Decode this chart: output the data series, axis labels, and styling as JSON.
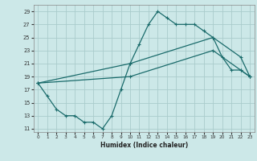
{
  "xlabel": "Humidex (Indice chaleur)",
  "bg_color": "#cce8e8",
  "grid_color": "#aacccc",
  "line_color": "#1a6b6b",
  "xlim": [
    -0.5,
    23.5
  ],
  "ylim": [
    10.5,
    30
  ],
  "xticks": [
    0,
    1,
    2,
    3,
    4,
    5,
    6,
    7,
    8,
    9,
    10,
    11,
    12,
    13,
    14,
    15,
    16,
    17,
    18,
    19,
    20,
    21,
    22,
    23
  ],
  "yticks": [
    11,
    13,
    15,
    17,
    19,
    21,
    23,
    25,
    27,
    29
  ],
  "line1_x": [
    0,
    1,
    2,
    3,
    4,
    5,
    6,
    7,
    8,
    9,
    10,
    11,
    12,
    13,
    14,
    15,
    16,
    17,
    18,
    19,
    20,
    21,
    22,
    23
  ],
  "line1_y": [
    18,
    16,
    14,
    13,
    13,
    12,
    12,
    11,
    13,
    17,
    21,
    24,
    27,
    29,
    28,
    27,
    27,
    27,
    26,
    25,
    22,
    20,
    20,
    19
  ],
  "line2_x": [
    0,
    10,
    19,
    22,
    23
  ],
  "line2_y": [
    18,
    21,
    25,
    22,
    19
  ],
  "line3_x": [
    0,
    10,
    19,
    22,
    23
  ],
  "line3_y": [
    18,
    19,
    23,
    20,
    19
  ]
}
